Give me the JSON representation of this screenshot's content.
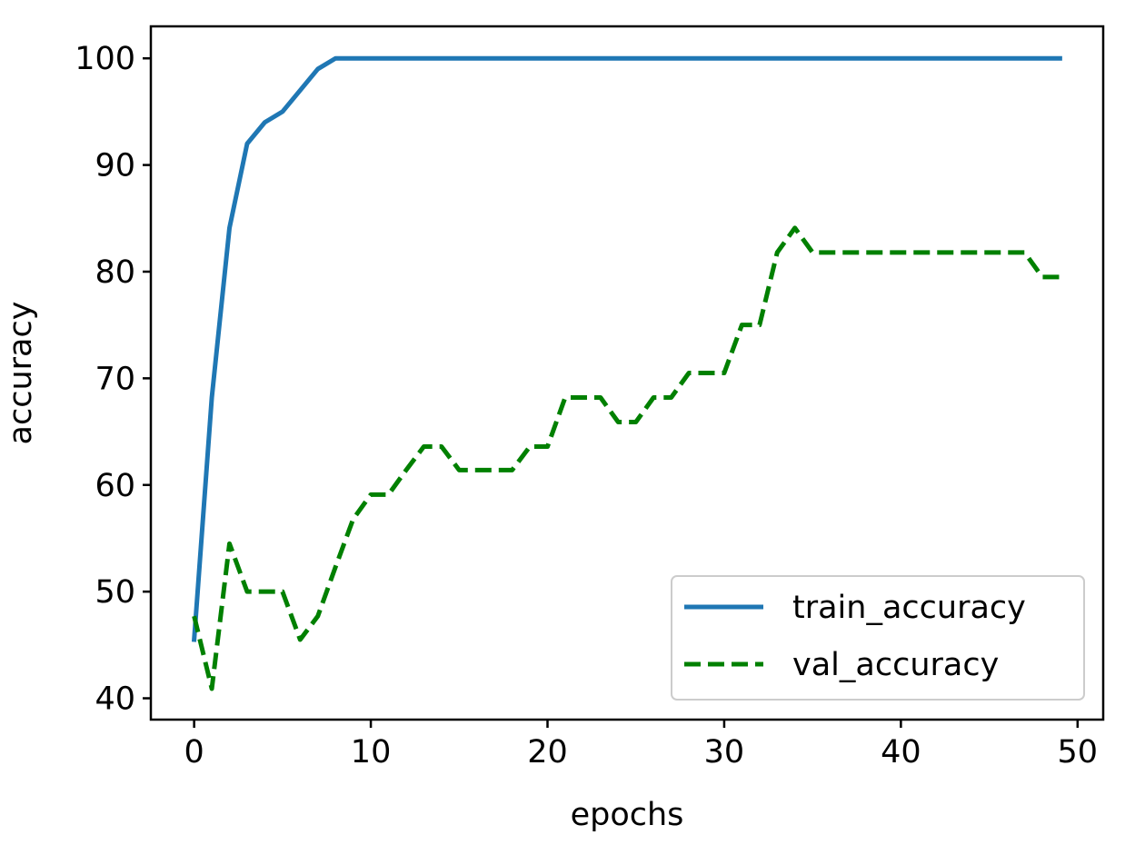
{
  "chart_data": {
    "type": "line",
    "title": "",
    "xlabel": "epochs",
    "ylabel": "accuracy",
    "xlim": [
      -2.45,
      51.45
    ],
    "ylim": [
      38.0,
      103.0
    ],
    "xticks": [
      0,
      10,
      20,
      30,
      40,
      50
    ],
    "yticks": [
      40,
      50,
      60,
      70,
      80,
      90,
      100
    ],
    "grid": false,
    "legend_position": "lower right",
    "x": [
      0,
      1,
      2,
      3,
      4,
      5,
      6,
      7,
      8,
      9,
      10,
      11,
      12,
      13,
      14,
      15,
      16,
      17,
      18,
      19,
      20,
      21,
      22,
      23,
      24,
      25,
      26,
      27,
      28,
      29,
      30,
      31,
      32,
      33,
      34,
      35,
      36,
      37,
      38,
      39,
      40,
      41,
      42,
      43,
      44,
      45,
      46,
      47,
      48,
      49
    ],
    "series": [
      {
        "name": "train_accuracy",
        "color": "#1f77b4",
        "style": "solid",
        "values": [
          45.5,
          68.2,
          84.1,
          92.0,
          94.0,
          95.0,
          97.0,
          99.0,
          100,
          100,
          100,
          100,
          100,
          100,
          100,
          100,
          100,
          100,
          100,
          100,
          100,
          100,
          100,
          100,
          100,
          100,
          100,
          100,
          100,
          100,
          100,
          100,
          100,
          100,
          100,
          100,
          100,
          100,
          100,
          100,
          100,
          100,
          100,
          100,
          100,
          100,
          100,
          100,
          100,
          100
        ]
      },
      {
        "name": "val_accuracy",
        "color": "#008000",
        "style": "dashed",
        "values": [
          47.7,
          40.9,
          54.5,
          50.0,
          50.0,
          50.0,
          45.5,
          47.7,
          52.3,
          56.8,
          59.1,
          59.1,
          61.4,
          63.6,
          63.6,
          61.4,
          61.4,
          61.4,
          61.4,
          63.6,
          63.6,
          68.2,
          68.2,
          68.2,
          65.9,
          65.9,
          68.2,
          68.2,
          70.5,
          70.5,
          70.5,
          75.0,
          75.0,
          81.8,
          84.1,
          81.8,
          81.8,
          81.8,
          81.8,
          81.8,
          81.8,
          81.8,
          81.8,
          81.8,
          81.8,
          81.8,
          81.8,
          81.8,
          79.5,
          79.5
        ]
      }
    ]
  }
}
